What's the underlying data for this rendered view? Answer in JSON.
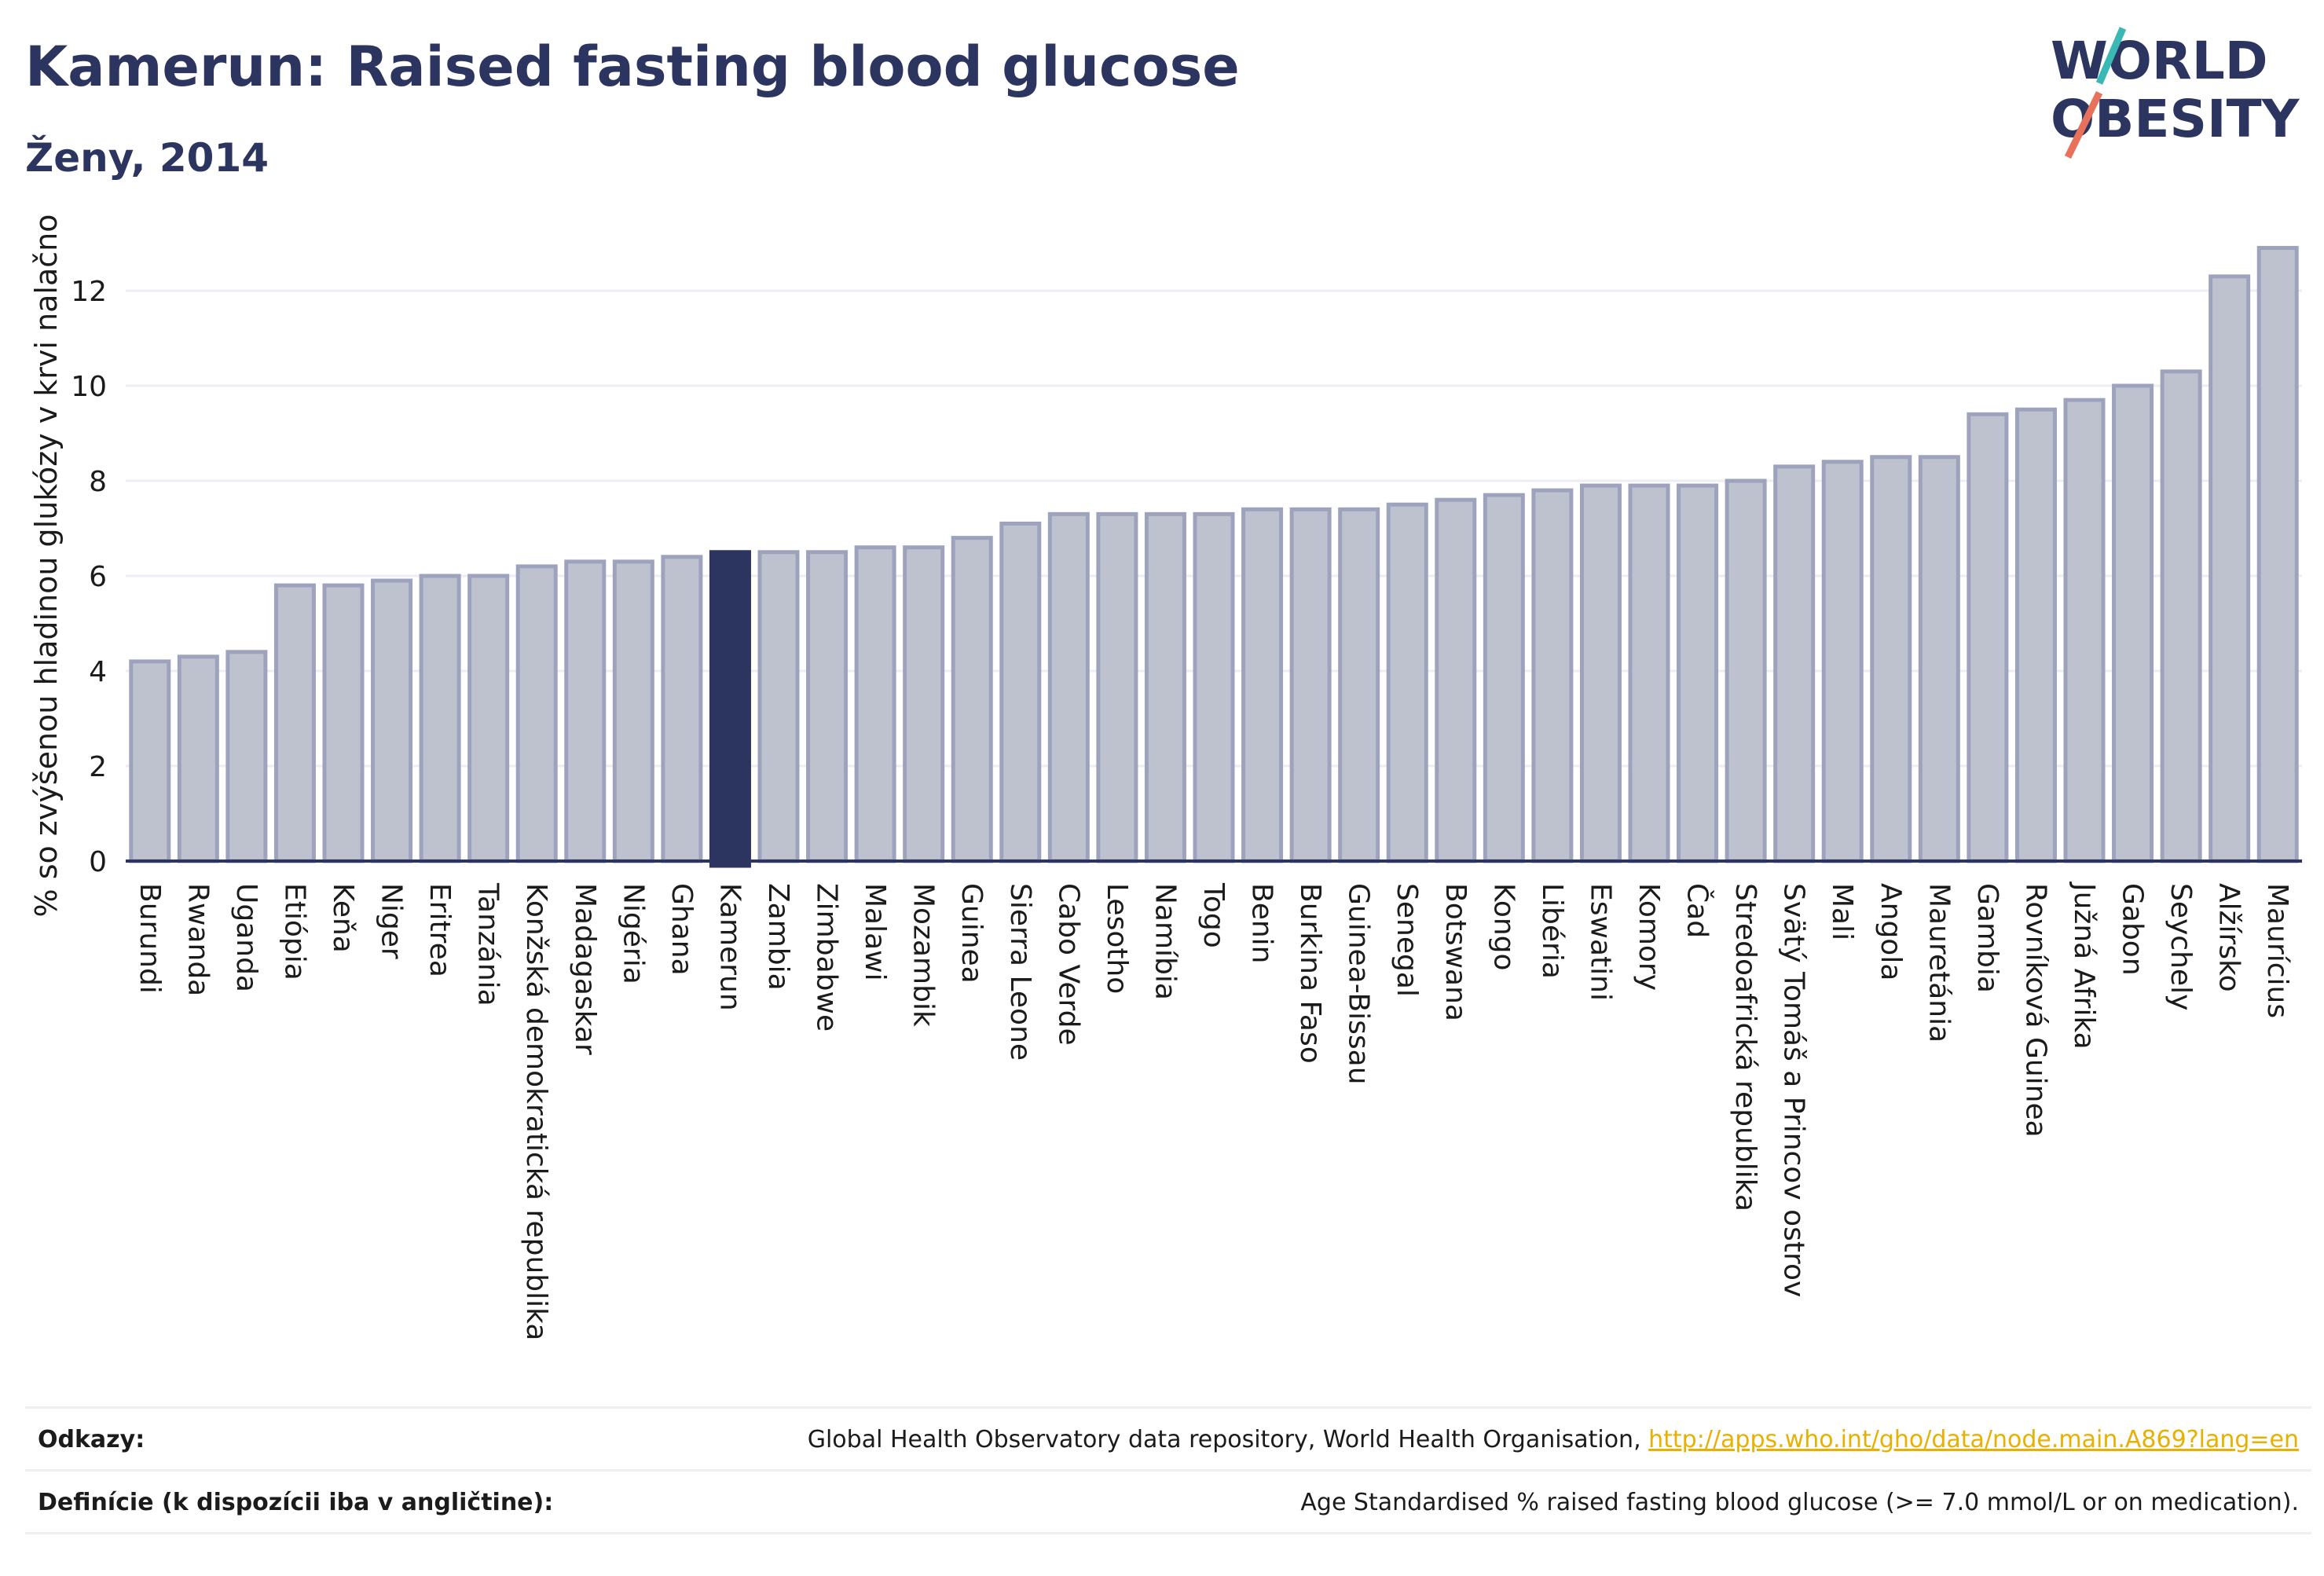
{
  "header": {
    "title": "Kamerun: Raised fasting blood glucose",
    "subtitle": "Ženy, 2014"
  },
  "logo": {
    "line1": "WORLD",
    "line2": "OBESITY",
    "accent1": "#3ab8b4",
    "accent2": "#e8715b"
  },
  "colors": {
    "bar": "#bec2cf",
    "bar_border": "#9ea3bd",
    "highlight": "#2c355f",
    "grid": "#eceef4",
    "axis": "#2c355f"
  },
  "chart_data": {
    "type": "bar",
    "ylabel": "% so zvýšenou hladinou glukózy v krvi nalačno",
    "ylim": [
      0,
      13.5
    ],
    "yticks": [
      0,
      2,
      4,
      6,
      8,
      10,
      12
    ],
    "highlight": "Kamerun",
    "grid": true,
    "categories": [
      "Burundi",
      "Rwanda",
      "Uganda",
      "Etiópia",
      "Keňa",
      "Niger",
      "Eritrea",
      "Tanzánia",
      "Konžská demokratická republika",
      "Madagaskar",
      "Nigéria",
      "Ghana",
      "Kamerun",
      "Zambia",
      "Zimbabwe",
      "Malawi",
      "Mozambik",
      "Guinea",
      "Sierra Leone",
      "Cabo Verde",
      "Lesotho",
      "Namíbia",
      "Togo",
      "Benin",
      "Burkina Faso",
      "Guinea-Bissau",
      "Senegal",
      "Botswana",
      "Kongo",
      "Libéria",
      "Eswatini",
      "Komory",
      "Čad",
      "Stredoafrická republika",
      "Svätý Tomáš a Princov ostrov",
      "Mali",
      "Angola",
      "Mauretánia",
      "Gambia",
      "Rovníková Guinea",
      "Južná Afrika",
      "Gabon",
      "Seychely",
      "Alžírsko",
      "Maurícius"
    ],
    "values": [
      4.2,
      4.3,
      4.4,
      5.8,
      5.8,
      5.9,
      6.0,
      6.0,
      6.2,
      6.3,
      6.3,
      6.4,
      6.5,
      6.5,
      6.5,
      6.6,
      6.6,
      6.8,
      7.1,
      7.3,
      7.3,
      7.3,
      7.3,
      7.4,
      7.4,
      7.4,
      7.5,
      7.6,
      7.7,
      7.8,
      7.9,
      7.9,
      7.9,
      8.0,
      8.3,
      8.4,
      8.5,
      8.5,
      9.4,
      9.5,
      9.7,
      10.0,
      10.3,
      12.3,
      12.9
    ]
  },
  "footer": {
    "refs_label": "Odkazy:",
    "refs_text": "Global Health Observatory data repository, World Health Organisation, ",
    "refs_link": "http://apps.who.int/gho/data/node.main.A869?lang=en",
    "def_label": "Definície (k dispozícii iba v angličtine):",
    "def_text": "Age Standardised % raised fasting blood glucose (>= 7.0 mmol/L or on medication)."
  }
}
